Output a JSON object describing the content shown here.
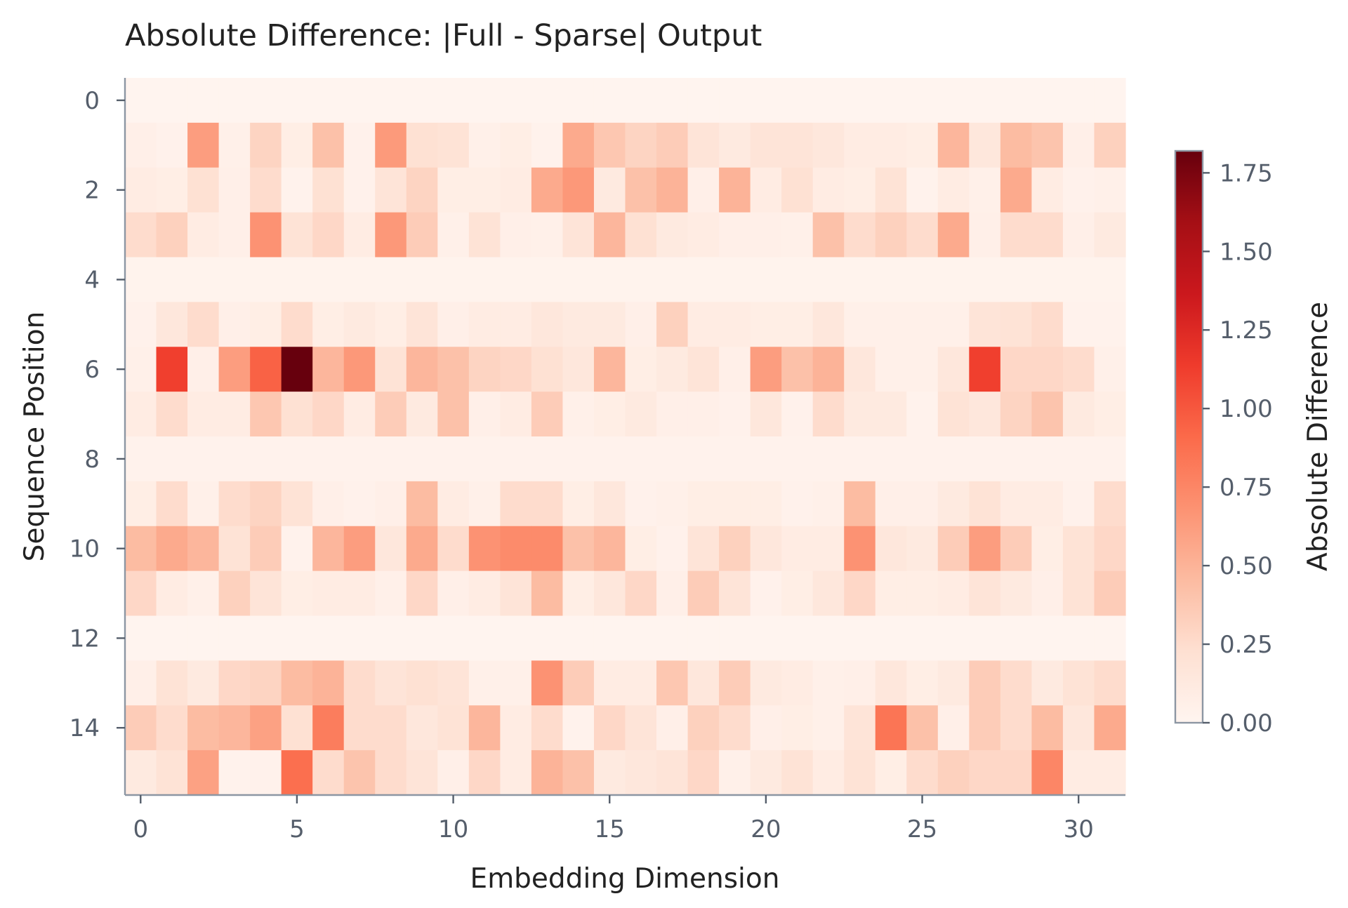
{
  "chart_data": {
    "type": "heatmap",
    "title": "Absolute Difference: |Full - Sparse| Output",
    "xlabel": "Embedding Dimension",
    "ylabel": "Sequence Position",
    "colorbar_label": "Absolute Difference",
    "colormap": "Reds",
    "colormap_stops": [
      "#fff5f0",
      "#fee0d2",
      "#fcbba1",
      "#fc9272",
      "#fb6a4a",
      "#ef3b2c",
      "#cb181d",
      "#a50f15",
      "#67000d"
    ],
    "vmin": 0,
    "vmax": 1.82,
    "x_ticks": [
      0,
      5,
      10,
      15,
      20,
      25,
      30
    ],
    "y_ticks": [
      0,
      2,
      4,
      6,
      8,
      10,
      12,
      14
    ],
    "colorbar_ticks": [
      "0.00",
      "0.25",
      "0.50",
      "0.75",
      "1.00",
      "1.25",
      "1.50",
      "1.75"
    ],
    "n_rows": 16,
    "n_cols": 32,
    "values": [
      [
        0.01,
        0.01,
        0.01,
        0.01,
        0.01,
        0.01,
        0.01,
        0.01,
        0.01,
        0.01,
        0.01,
        0.01,
        0.01,
        0.01,
        0.01,
        0.01,
        0.01,
        0.01,
        0.01,
        0.01,
        0.01,
        0.01,
        0.01,
        0.01,
        0.01,
        0.01,
        0.01,
        0.01,
        0.01,
        0.01,
        0.01,
        0.01
      ],
      [
        0.06,
        0.04,
        0.62,
        0.05,
        0.3,
        0.08,
        0.42,
        0.04,
        0.64,
        0.22,
        0.2,
        0.05,
        0.08,
        0.03,
        0.55,
        0.38,
        0.3,
        0.35,
        0.18,
        0.12,
        0.18,
        0.18,
        0.15,
        0.1,
        0.1,
        0.08,
        0.48,
        0.15,
        0.45,
        0.4,
        0.06,
        0.32
      ],
      [
        0.1,
        0.08,
        0.22,
        0.06,
        0.25,
        0.03,
        0.22,
        0.04,
        0.18,
        0.3,
        0.08,
        0.08,
        0.1,
        0.55,
        0.65,
        0.12,
        0.42,
        0.5,
        0.06,
        0.5,
        0.1,
        0.22,
        0.1,
        0.08,
        0.2,
        0.03,
        0.1,
        0.05,
        0.55,
        0.1,
        0.04,
        0.05
      ],
      [
        0.25,
        0.32,
        0.1,
        0.06,
        0.68,
        0.2,
        0.28,
        0.1,
        0.65,
        0.35,
        0.05,
        0.2,
        0.06,
        0.05,
        0.18,
        0.48,
        0.22,
        0.12,
        0.1,
        0.06,
        0.06,
        0.05,
        0.42,
        0.25,
        0.32,
        0.25,
        0.55,
        0.06,
        0.25,
        0.25,
        0.06,
        0.12
      ],
      [
        0.02,
        0.02,
        0.02,
        0.02,
        0.02,
        0.02,
        0.02,
        0.02,
        0.02,
        0.02,
        0.02,
        0.02,
        0.02,
        0.02,
        0.02,
        0.02,
        0.02,
        0.02,
        0.02,
        0.02,
        0.02,
        0.02,
        0.02,
        0.02,
        0.02,
        0.02,
        0.02,
        0.02,
        0.02,
        0.02,
        0.02,
        0.02
      ],
      [
        0.04,
        0.15,
        0.25,
        0.06,
        0.08,
        0.25,
        0.08,
        0.12,
        0.08,
        0.18,
        0.06,
        0.1,
        0.1,
        0.15,
        0.12,
        0.12,
        0.06,
        0.32,
        0.1,
        0.1,
        0.08,
        0.08,
        0.15,
        0.05,
        0.05,
        0.05,
        0.05,
        0.18,
        0.2,
        0.25,
        0.03,
        0.03
      ],
      [
        0.05,
        1.12,
        0.06,
        0.62,
        0.95,
        1.82,
        0.48,
        0.65,
        0.2,
        0.48,
        0.42,
        0.3,
        0.28,
        0.22,
        0.15,
        0.48,
        0.08,
        0.12,
        0.18,
        0.06,
        0.62,
        0.42,
        0.5,
        0.15,
        0.05,
        0.05,
        0.15,
        1.12,
        0.28,
        0.28,
        0.25,
        0.05
      ],
      [
        0.1,
        0.25,
        0.1,
        0.1,
        0.38,
        0.22,
        0.28,
        0.1,
        0.35,
        0.12,
        0.42,
        0.06,
        0.1,
        0.35,
        0.05,
        0.08,
        0.12,
        0.06,
        0.06,
        0.04,
        0.15,
        0.04,
        0.25,
        0.12,
        0.12,
        0.03,
        0.2,
        0.15,
        0.3,
        0.4,
        0.12,
        0.08
      ],
      [
        0.03,
        0.03,
        0.03,
        0.03,
        0.03,
        0.03,
        0.03,
        0.03,
        0.03,
        0.03,
        0.03,
        0.03,
        0.03,
        0.03,
        0.03,
        0.03,
        0.03,
        0.03,
        0.03,
        0.03,
        0.03,
        0.03,
        0.03,
        0.03,
        0.03,
        0.03,
        0.03,
        0.03,
        0.03,
        0.03,
        0.03,
        0.03
      ],
      [
        0.08,
        0.25,
        0.05,
        0.25,
        0.3,
        0.2,
        0.06,
        0.04,
        0.06,
        0.45,
        0.1,
        0.05,
        0.25,
        0.25,
        0.08,
        0.15,
        0.04,
        0.05,
        0.08,
        0.08,
        0.08,
        0.04,
        0.05,
        0.45,
        0.06,
        0.06,
        0.12,
        0.2,
        0.1,
        0.1,
        0.04,
        0.25
      ],
      [
        0.45,
        0.55,
        0.48,
        0.2,
        0.35,
        0.03,
        0.48,
        0.62,
        0.15,
        0.55,
        0.25,
        0.68,
        0.72,
        0.72,
        0.42,
        0.48,
        0.08,
        0.04,
        0.18,
        0.32,
        0.15,
        0.1,
        0.1,
        0.68,
        0.15,
        0.12,
        0.35,
        0.62,
        0.35,
        0.08,
        0.2,
        0.28
      ],
      [
        0.28,
        0.1,
        0.05,
        0.32,
        0.18,
        0.08,
        0.1,
        0.1,
        0.05,
        0.28,
        0.06,
        0.1,
        0.18,
        0.45,
        0.08,
        0.15,
        0.28,
        0.06,
        0.35,
        0.18,
        0.04,
        0.08,
        0.15,
        0.28,
        0.08,
        0.08,
        0.1,
        0.18,
        0.12,
        0.06,
        0.2,
        0.35
      ],
      [
        0.01,
        0.01,
        0.01,
        0.01,
        0.01,
        0.01,
        0.01,
        0.01,
        0.01,
        0.01,
        0.01,
        0.01,
        0.01,
        0.01,
        0.01,
        0.01,
        0.01,
        0.01,
        0.01,
        0.01,
        0.01,
        0.01,
        0.01,
        0.01,
        0.01,
        0.01,
        0.01,
        0.01,
        0.01,
        0.01,
        0.01,
        0.01
      ],
      [
        0.06,
        0.2,
        0.12,
        0.28,
        0.3,
        0.45,
        0.5,
        0.25,
        0.18,
        0.22,
        0.18,
        0.05,
        0.05,
        0.68,
        0.35,
        0.1,
        0.1,
        0.38,
        0.15,
        0.35,
        0.12,
        0.1,
        0.05,
        0.06,
        0.15,
        0.08,
        0.12,
        0.35,
        0.25,
        0.12,
        0.2,
        0.25
      ],
      [
        0.35,
        0.25,
        0.45,
        0.48,
        0.6,
        0.22,
        0.8,
        0.25,
        0.25,
        0.15,
        0.2,
        0.48,
        0.1,
        0.25,
        0.03,
        0.28,
        0.18,
        0.06,
        0.32,
        0.25,
        0.06,
        0.08,
        0.05,
        0.18,
        0.85,
        0.42,
        0.06,
        0.35,
        0.25,
        0.45,
        0.15,
        0.55
      ],
      [
        0.12,
        0.2,
        0.6,
        0.03,
        0.04,
        0.88,
        0.25,
        0.4,
        0.25,
        0.18,
        0.06,
        0.28,
        0.1,
        0.5,
        0.42,
        0.12,
        0.15,
        0.18,
        0.28,
        0.05,
        0.12,
        0.2,
        0.1,
        0.2,
        0.08,
        0.25,
        0.32,
        0.28,
        0.28,
        0.75,
        0.1,
        0.1
      ]
    ]
  }
}
